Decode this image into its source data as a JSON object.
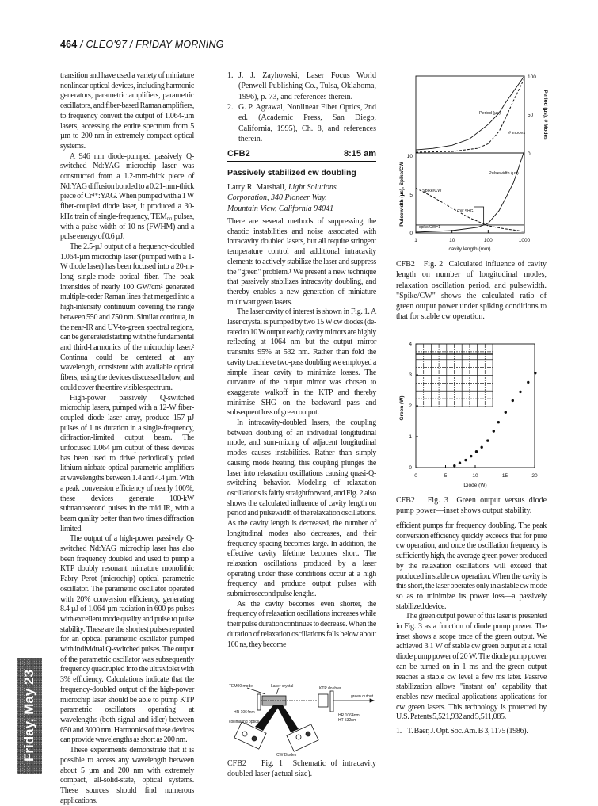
{
  "running_head": {
    "page": "464",
    "rest": " / CLEO'97 / FRIDAY MORNING"
  },
  "sidebar_tab": "Friday, May 23",
  "left_column": {
    "paragraphs": [
      "transition and have used a variety of miniature nonlinear optical devices, including harmonic generators, parametric amplifiers, parametric oscillators, and fiber-based Raman amplifiers, to frequency convert the output of 1.064-µm lasers, accessing the entire spectrum from 5 µm to 200 nm in extremely compact optical systems.",
      "A 946 nm diode-pumped passively Q-switched Nd:YAG microchip laser was constructed from a 1.2-mm-thick piece of Nd:YAG diffusion bonded to a 0.21-mm-thick piece of Cr⁴⁺:YAG. When pumped with a 1 W fiber-coupled diode laser, it produced a 30-kHz train of single-frequency, TEM₀₀ pulses, with a pulse width of 10 ns (FWHM) and a pulse energy of 0.6 µJ.",
      "The 2.5-µJ output of a frequency-doubled 1.064-µm microchip laser (pumped with a 1-W diode laser) has been focused into a 20-m-long single-mode optical fiber. The peak intensities of nearly 100 GW/cm² generated multiple-order Raman lines that merged into a high-intensity continuum covering the range between 550 and 750 nm. Similar continua, in the near-IR and UV-to-green spectral regions, can be generated starting with the fundamental and third-harmonics of the microchip laser.² Continua could be centered at any wavelength, consistent with available optical fibers, using the devices discussed below, and could cover the entire visible spectrum.",
      "High-power passively Q-switched microchip lasers, pumped with a 12-W fiber-coupled diode laser array, produce 157-µJ pulses of 1 ns duration in a single-frequency, diffraction-limited output beam. The unfocused 1.064 µm output of these devices has been used to drive periodically poled lithium niobate optical parametric amplifiers at wavelengths between 1.4 and 4.4 µm. With a peak conversion efficiency of nearly 100%, these devices generate 100-kW subnanosecond pulses in the mid IR, with a beam quality better than two times diffraction limited.",
      "The output of a high-power passively Q-switched Nd:YAG microchip laser has also been frequency doubled and used to pump a KTP doubly resonant miniature monolithic Fabry–Perot (microchip) optical parametric oscillator. The parametric oscillator operated with 20% conversion efficiency, generating 8.4 µJ of 1.064-µm radiation in 600 ps pulses with excellent mode quality and pulse to pulse stability. These are the shortest pulses reported for an optical parametric oscillator pumped with individual Q-switched pulses. The output of the parametric oscillator was subsequently frequency quadrupled into the ultraviolet with 3% efficiency. Calculations indicate that the frequency-doubled output of the high-power microchip laser should be able to pump KTP parametric oscillators operating at wavelengths (both signal and idler) between 650 and 3000 nm. Harmonics of these devices can provide wavelengths as short as 200 nm.",
      "These experiments demonstrate that it is possible to access any wavelength between about 5 µm and 200 nm with extremely compact, all-solid-state, optical systems. These sources should find numerous applications."
    ]
  },
  "prev_references": [
    {
      "n": "1.",
      "text": "J. J. Zayhowski, Laser Focus World (Penwell Publishing Co., Tulsa, Oklahoma, 1996), p. 73, and references therein."
    },
    {
      "n": "2.",
      "text": "G. P. Agrawal, Nonlinear Fiber Optics, 2nd ed. (Academic Press, San Diego, California, 1995), Ch. 8, and references therein."
    }
  ],
  "session": {
    "code": "CFB2",
    "time": "8:15 am"
  },
  "paper": {
    "title": "Passively stabilized cw doubling",
    "author": "Larry R. Marshall,",
    "affiliation_1": "Light Solutions",
    "affiliation_2": "Corporation, 340 Pioneer Way,",
    "affiliation_3": "Mountain View, California 94041",
    "middle_paragraphs": [
      "There are several methods of suppressing the chaotic instabilities and noise associated with intracavity doubled lasers, but all require stringent temperature control and additional intracavity elements to actively stabilize the laser and suppress the \"green\" problem.¹ We present a new technique that passively stabilizes intracavity doubling, and thereby enables a new generation of miniature multiwatt green lasers.",
      "The laser cavity of interest is shown in Fig. 1. A laser crystal is pumped by two 15 W cw diodes (de-rated to 10 W output each); cavity mirrors are highly reflecting at 1064 nm but the output mirror transmits 95% at 532 nm. Rather than fold the cavity to achieve two-pass doubling we employed a simple linear cavity to minimize losses. The curvature of the output mirror was chosen to exaggerate walkoff in the KTP and thereby minimise SHG on the backward pass and subsequent loss of green output.",
      "In intracavity-doubled lasers, the coupling between doubling of an individual longitudinal mode, and sum-mixing of adjacent longitudinal modes causes instabilities. Rather than simply causing mode heating, this coupling plunges the laser into relaxation oscillations causing quasi-Q-switching behavior. Modeling of relaxation oscillations is fairly straightforward, and Fig. 2 also shows the calculated influence of cavity length on period and pulsewidth of the relaxation oscillations. As the cavity length is decreased, the number of longitudinal modes also decreases, and their frequency spacing becomes large. In addition, the effective cavity lifetime becomes short. The relaxation oscillations produced by a laser operating under these conditions occur at a high frequency and produce output pulses with submicrosecond pulse lengths.",
      "As the cavity becomes even shorter, the frequency of relaxation oscillations increases while their pulse duration continues to decrease. When the duration of relaxation oscillations falls below about 100 ns, they become"
    ],
    "right_paragraphs": [
      "efficient pumps for frequency doubling. The peak conversion efficiency quickly exceeds that for pure cw operation, and once the oscillation frequency is sufficiently high, the average green power produced by the relaxation oscillations will exceed that produced in stable cw operation. When the cavity is this short, the laser operates only in a stable cw mode so as to minimize its power loss—a passively stabilized device.",
      "The green output power of this laser is presented in Fig. 3 as a function of diode pump power. The inset shows a scope trace of the green output. We achieved 3.1 W of stable cw green output at a total diode pump power of 20 W. The diode pump power can be turned on in 1 ms and the green output reaches a stable cw level a few ms later. Passive stabilization allows \"instant on\" capability that enables new medical applications applications for cw green lasers. This technology is protected by U.S. Patents 5,521,932 and 5,511,085."
    ],
    "references": [
      {
        "n": "1.",
        "text": "T. Baer, J. Opt. Soc. Am. B 3, 1175 (1986)."
      }
    ]
  },
  "fig1": {
    "caption_label": "CFB2   Fig. 1",
    "caption_text": "Schematic of intracavity doubled laser (actual size).",
    "labels": {
      "tem": "TEM00 mode",
      "crystal": "Laser crystal",
      "ktp": "KTP doubler",
      "green": "green output",
      "hr1": "HR 1064nm",
      "hr2a": "HR 1064nm",
      "hr2b": "HT 532nm",
      "collim": "collimating optics",
      "diodes": "CW Diodes"
    }
  },
  "fig2": {
    "caption_label": "CFB2   Fig. 2",
    "caption_text": "Calculated influence of cavity length on number of longitudinal modes, relaxation oscillation period, and pulsewidth. \"Spike/CW\" shows the calculated ratio of green output power under spiking conditions to that for stable cw operation."
  },
  "fig3": {
    "caption_label": "CFB2   Fig. 3",
    "caption_text": "Green output versus diode pump power—inset shows output stability."
  },
  "chart_data": [
    {
      "type": "line",
      "xlabel": "cavity length (mm)",
      "x_scale": "log",
      "xlim": [
        1,
        1000
      ],
      "x_ticks": [
        "1",
        "10",
        "100",
        "1000"
      ],
      "panels": [
        {
          "ylabel": "Period (µs), # Modes",
          "y_axis_side": "right",
          "ylim": [
            0,
            100
          ],
          "y_ticks": [
            "0",
            "50",
            "100"
          ],
          "series": [
            {
              "name": "Period (µs)",
              "style": "solid",
              "x": [
                1,
                3,
                10,
                30,
                100,
                200,
                300,
                500,
                1000
              ],
              "y": [
                4,
                6,
                10,
                18,
                37,
                52,
                65,
                80,
                100
              ]
            },
            {
              "name": "# modes",
              "style": "dashed",
              "x": [
                1,
                10,
                50,
                100,
                200,
                300,
                500,
                700,
                1000
              ],
              "y": [
                1,
                2,
                6,
                12,
                28,
                45,
                68,
                82,
                97
              ]
            }
          ]
        },
        {
          "ylabel": "Pulsewidth (µs), Spike/CW",
          "y_axis_side": "left",
          "ylim": [
            0,
            10
          ],
          "y_ticks": [
            "0",
            "5",
            "10"
          ],
          "series": [
            {
              "name": "Pulsewidth (µs)",
              "style": "solid",
              "x": [
                1,
                10,
                50,
                100,
                200,
                300,
                500,
                700,
                1000
              ],
              "y": [
                0.1,
                0.3,
                0.7,
                1.2,
                2.8,
                4.3,
                6.3,
                8.2,
                10.3
              ]
            },
            {
              "name": "Spike/CW",
              "style": "dashed",
              "x": [
                1,
                3,
                10,
                30,
                70,
                100,
                300,
                1000
              ],
              "y": [
                5.6,
                4.5,
                3.1,
                1.9,
                1.2,
                0.9,
                0.5,
                0.2
              ]
            },
            {
              "name": "spike/CW=1",
              "style": "solid",
              "x": [
                1,
                1000
              ],
              "y": [
                1,
                1
              ]
            }
          ],
          "annotations": [
            "CW SHG"
          ]
        }
      ]
    },
    {
      "type": "scatter",
      "xlabel": "Diode (W)",
      "ylabel": "Green (W)",
      "xlim": [
        0,
        20
      ],
      "ylim": [
        0,
        4
      ],
      "x_ticks": [
        "0",
        "5",
        "10",
        "15",
        "20"
      ],
      "y_ticks": [
        "0",
        "1",
        "2",
        "3",
        "4"
      ],
      "x": [
        6.5,
        7.4,
        8.4,
        9.3,
        10.2,
        11.1,
        12.1,
        13.1,
        13.9,
        15.1,
        16.3,
        17.6,
        18.9,
        20.1
      ],
      "y": [
        0.06,
        0.15,
        0.24,
        0.37,
        0.52,
        0.66,
        0.87,
        1.18,
        1.47,
        1.79,
        2.17,
        2.45,
        2.76,
        3.06
      ],
      "inset": "scope trace of output stability"
    }
  ]
}
